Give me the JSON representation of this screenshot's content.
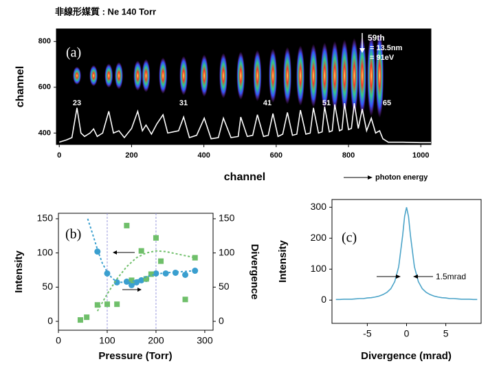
{
  "chart_data": [
    {
      "type": "line",
      "title": "非線形媒質 : Ne 140 Torr",
      "panel_label": "(a)",
      "xlabel": "channel",
      "ylabel": "channel",
      "xlim": [
        -8,
        1028
      ],
      "ylim": [
        350,
        855
      ],
      "xticks": [
        0,
        200,
        400,
        600,
        800,
        1000
      ],
      "yticks": [
        400,
        600,
        800
      ],
      "annotations": [
        "59th",
        "= 13.5nm",
        "= 91eV",
        "23",
        "31",
        "41",
        "51",
        "65",
        "photon energy"
      ],
      "background": "#000000",
      "series": [
        {
          "color": "#ffffff",
          "x": [
            0,
            20,
            35,
            49,
            60,
            70,
            85,
            95,
            105,
            120,
            137,
            150,
            165,
            180,
            200,
            217,
            230,
            240,
            255,
            270,
            287,
            300,
            315,
            330,
            344,
            360,
            380,
            401,
            420,
            440,
            454,
            475,
            495,
            502,
            520,
            535,
            548,
            565,
            578,
            591,
            605,
            618,
            631,
            645,
            657,
            667,
            682,
            694,
            703,
            717,
            727,
            734,
            747,
            755,
            762,
            775,
            782,
            789,
            800,
            808,
            816,
            827,
            838,
            850,
            863,
            875,
            886,
            895,
            910,
            950,
            1000,
            1028
          ],
          "values": [
            360,
            370,
            380,
            510,
            400,
            385,
            400,
            418,
            385,
            400,
            495,
            400,
            410,
            380,
            420,
            495,
            410,
            435,
            395,
            440,
            480,
            400,
            405,
            410,
            470,
            380,
            390,
            465,
            375,
            380,
            465,
            380,
            385,
            470,
            385,
            390,
            480,
            385,
            390,
            485,
            385,
            395,
            490,
            390,
            395,
            500,
            395,
            400,
            510,
            400,
            405,
            515,
            405,
            410,
            525,
            410,
            415,
            530,
            415,
            420,
            530,
            420,
            505,
            410,
            465,
            400,
            410,
            375,
            360,
            360,
            358,
            358
          ]
        }
      ]
    },
    {
      "type": "scatter",
      "panel_label": "(b)",
      "xlabel": "Pressure (Torr)",
      "ylabel": "Intensity",
      "y2label": "Divergence",
      "xlim": [
        0,
        317
      ],
      "ylim": [
        -13,
        158
      ],
      "y2lim": [
        -13,
        158
      ],
      "xticks": [
        0,
        100,
        200,
        300
      ],
      "yticks": [
        0,
        50,
        100,
        150
      ],
      "y2ticks": [
        0,
        50,
        100,
        150
      ],
      "vlines": [
        100,
        200
      ],
      "vline_color": "#9999dd",
      "series": [
        {
          "color": "#3a9fcf",
          "marker": "circle",
          "x": [
            80,
            100,
            120,
            140,
            150,
            160,
            170,
            180,
            200,
            220,
            240,
            260,
            280
          ],
          "values": [
            102,
            70,
            57,
            58,
            53,
            57,
            60,
            62,
            70,
            70,
            71,
            68,
            74
          ]
        },
        {
          "color": "#6fbf6a",
          "marker": "square",
          "axis": "y2",
          "x": [
            45,
            58,
            80,
            100,
            120,
            140,
            150,
            170,
            180,
            190,
            200,
            210,
            260,
            280
          ],
          "values": [
            2,
            6,
            24,
            25,
            25,
            140,
            60,
            103,
            62,
            69,
            122,
            88,
            32,
            93
          ]
        },
        {
          "color": "#3a9fcf",
          "style": "dashed",
          "x": [
            60,
            70,
            80,
            90,
            100,
            110,
            120,
            140,
            160,
            180,
            200,
            220,
            240,
            260,
            280
          ],
          "values": [
            150,
            128,
            105,
            85,
            72,
            63,
            58,
            56,
            60,
            65,
            69,
            71,
            72,
            73,
            74
          ]
        },
        {
          "color": "#6fbf6a",
          "style": "dashed",
          "axis": "y2",
          "x": [
            80,
            100,
            120,
            140,
            160,
            180,
            200,
            220,
            240,
            260,
            280
          ],
          "values": [
            15,
            40,
            62,
            80,
            93,
            100,
            103,
            102,
            99,
            96,
            93
          ]
        }
      ]
    },
    {
      "type": "line",
      "panel_label": "(c)",
      "annotations": [
        "1.5mrad"
      ],
      "xlabel": "Divergence (mrad)",
      "ylabel": "Intensity",
      "xlim": [
        -9.5,
        9.5
      ],
      "ylim": [
        -75,
        325
      ],
      "xticks": [
        -5,
        0,
        5
      ],
      "yticks": [
        0,
        100,
        200,
        300
      ],
      "series": [
        {
          "color": "#4aa3c8",
          "x": [
            -9,
            -8.5,
            -8,
            -7.5,
            -7,
            -6.5,
            -6,
            -5.5,
            -5,
            -4.5,
            -4,
            -3.5,
            -3,
            -2.5,
            -2,
            -1.5,
            -1,
            -0.5,
            -0.25,
            0,
            0.25,
            0.5,
            1,
            1.5,
            2,
            2.5,
            3,
            3.5,
            4,
            4.5,
            5,
            5.5,
            6,
            6.5,
            7,
            7.5,
            8,
            8.5,
            9
          ],
          "values": [
            2,
            2,
            3,
            3,
            3,
            4,
            5,
            5,
            7,
            8,
            10,
            13,
            18,
            25,
            37,
            60,
            108,
            208,
            270,
            300,
            270,
            208,
            108,
            60,
            37,
            25,
            18,
            13,
            10,
            8,
            7,
            5,
            5,
            4,
            3,
            3,
            3,
            2,
            2
          ]
        }
      ]
    }
  ]
}
